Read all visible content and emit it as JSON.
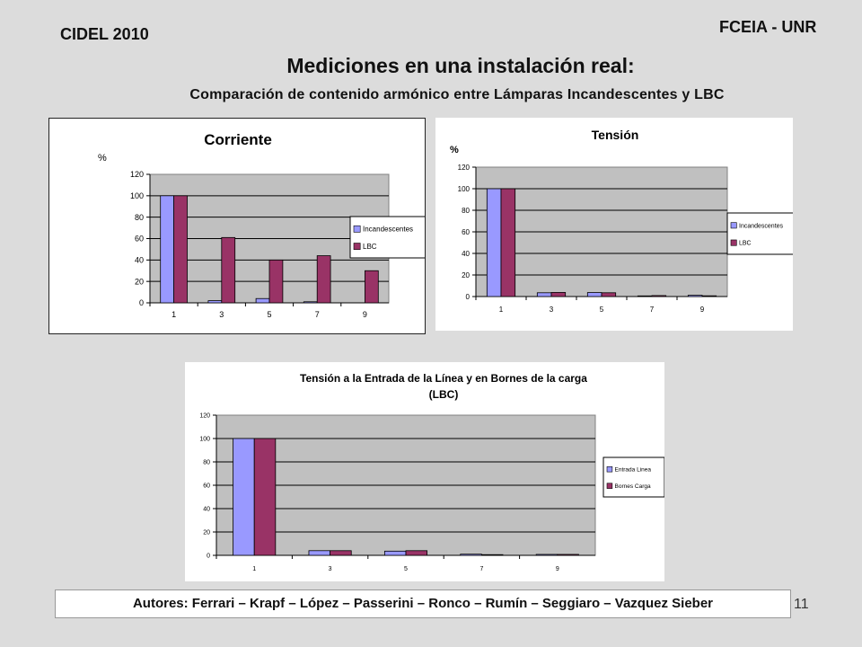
{
  "header": {
    "conference": "CIDEL 2010",
    "institution": "FCEIA - UNR",
    "title": "Mediciones en una instalación real:",
    "subtitle": "Comparación de contenido armónico entre Lámparas Incandescentes y LBC"
  },
  "footer": {
    "authors": "Autores: Ferrari – Krapf – López – Passerini – Ronco – Rumín – Seggiaro – Vazquez Sieber",
    "page": "11"
  },
  "colors": {
    "series_a": "#9999ff",
    "series_b": "#993366",
    "plot_area": "#c0c0c0",
    "background": "#dcdcdc"
  },
  "chart_data": [
    {
      "type": "bar",
      "title": "Corriente",
      "ylabel": "%",
      "categories": [
        "1",
        "3",
        "5",
        "7",
        "9"
      ],
      "yticks": [
        "0",
        "20",
        "40",
        "60",
        "80",
        "100",
        "120"
      ],
      "ylim": [
        0,
        120
      ],
      "grid": true,
      "legend": "right",
      "series": [
        {
          "name": "Incandescentes",
          "values": [
            100,
            2,
            4,
            1,
            0
          ]
        },
        {
          "name": "LBC",
          "values": [
            100,
            61,
            40,
            44,
            30
          ]
        }
      ]
    },
    {
      "type": "bar",
      "title": "Tensión",
      "ylabel": "%",
      "categories": [
        "1",
        "3",
        "5",
        "7",
        "9"
      ],
      "yticks": [
        "0",
        "20",
        "40",
        "60",
        "80",
        "100",
        "120"
      ],
      "ylim": [
        0,
        120
      ],
      "grid": true,
      "legend": "right",
      "series": [
        {
          "name": "Incandescentes",
          "values": [
            100,
            3.5,
            3.7,
            0.6,
            1.2
          ]
        },
        {
          "name": "LBC",
          "values": [
            100,
            3.8,
            3.5,
            0.9,
            0.7
          ]
        }
      ]
    },
    {
      "type": "bar",
      "title": "Tensión a la Entrada de la Línea y en Bornes de la carga",
      "subtitle": "(LBC)",
      "ylabel": "",
      "categories": [
        "1",
        "3",
        "5",
        "7",
        "9"
      ],
      "yticks": [
        "0",
        "20",
        "40",
        "60",
        "80",
        "100",
        "120"
      ],
      "ylim": [
        0,
        120
      ],
      "grid": true,
      "legend": "right",
      "series": [
        {
          "name": "Entrada Linea",
          "values": [
            100,
            4,
            3.6,
            1,
            0.8
          ]
        },
        {
          "name": "Bornes Carga",
          "values": [
            100,
            4,
            4,
            0.6,
            0.8
          ]
        }
      ]
    }
  ]
}
